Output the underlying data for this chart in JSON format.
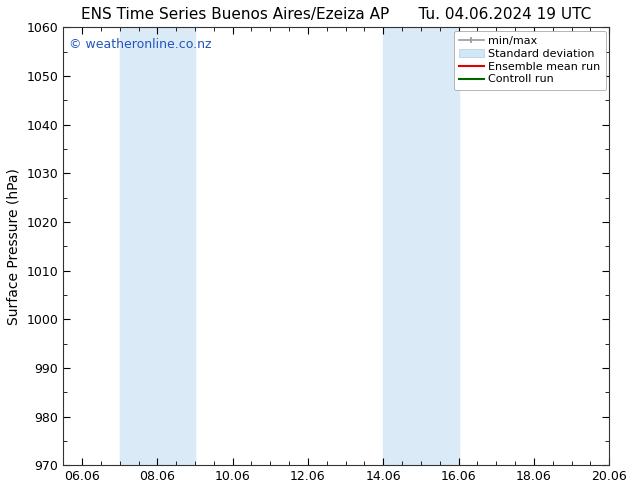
{
  "title_left": "ENS Time Series Buenos Aires/Ezeiza AP",
  "title_right": "Tu. 04.06.2024 19 UTC",
  "ylabel": "Surface Pressure (hPa)",
  "ylim": [
    970,
    1060
  ],
  "yticks": [
    970,
    980,
    990,
    1000,
    1010,
    1020,
    1030,
    1040,
    1050,
    1060
  ],
  "xlim_start": 0.0,
  "xlim_end": 14.5,
  "xtick_labels": [
    "06.06",
    "08.06",
    "10.06",
    "12.06",
    "14.06",
    "16.06",
    "18.06",
    "20.06"
  ],
  "xtick_positions": [
    0.5,
    2.5,
    4.5,
    6.5,
    8.5,
    10.5,
    12.5,
    14.5
  ],
  "shaded_regions": [
    {
      "x_start": 1.5,
      "x_end": 2.0,
      "color": "#daeaf7"
    },
    {
      "x_start": 2.0,
      "x_end": 3.5,
      "color": "#daeaf7"
    },
    {
      "x_start": 8.5,
      "x_end": 9.0,
      "color": "#daeaf7"
    },
    {
      "x_start": 9.0,
      "x_end": 10.5,
      "color": "#daeaf7"
    }
  ],
  "watermark_text": "© weatheronline.co.nz",
  "watermark_color": "#2255bb",
  "background_color": "#ffffff",
  "plot_bg_color": "#ffffff",
  "legend_items": [
    {
      "label": "min/max",
      "color": "#aaaaaa",
      "type": "errorbar"
    },
    {
      "label": "Standard deviation",
      "color": "#d0e8f5",
      "type": "bar"
    },
    {
      "label": "Ensemble mean run",
      "color": "#dd0000",
      "type": "line"
    },
    {
      "label": "Controll run",
      "color": "#006600",
      "type": "line"
    }
  ],
  "title_fontsize": 11,
  "watermark_fontsize": 9,
  "axis_label_fontsize": 10,
  "tick_fontsize": 9,
  "legend_fontsize": 8
}
